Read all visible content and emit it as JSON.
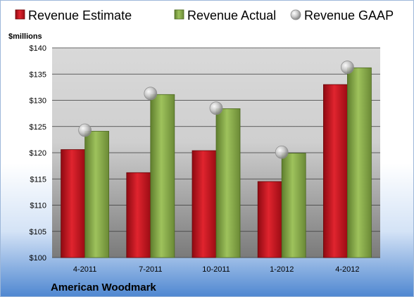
{
  "chart_data": {
    "type": "bar",
    "title": "",
    "ylabel": "$millions",
    "footer": "American Woodmark",
    "ylim": [
      100,
      140
    ],
    "ytick_step": 5,
    "ytick_prefix": "$",
    "grid": true,
    "legend_position": "top",
    "categories": [
      "4-2011",
      "7-2011",
      "10-2011",
      "1-2012",
      "4-2012"
    ],
    "series": [
      {
        "name": "Revenue Estimate",
        "kind": "bar",
        "color": "#c8101b",
        "values": [
          120.6,
          116.2,
          120.4,
          114.5,
          133.0
        ]
      },
      {
        "name": "Revenue Actual",
        "kind": "bar",
        "color": "#8faf4e",
        "values": [
          124.1,
          131.1,
          128.4,
          119.9,
          136.2
        ]
      },
      {
        "name": "Revenue GAAP",
        "kind": "marker",
        "color": "#b0b0b0",
        "values": [
          124.3,
          131.3,
          128.5,
          120.1,
          136.3
        ]
      }
    ]
  }
}
